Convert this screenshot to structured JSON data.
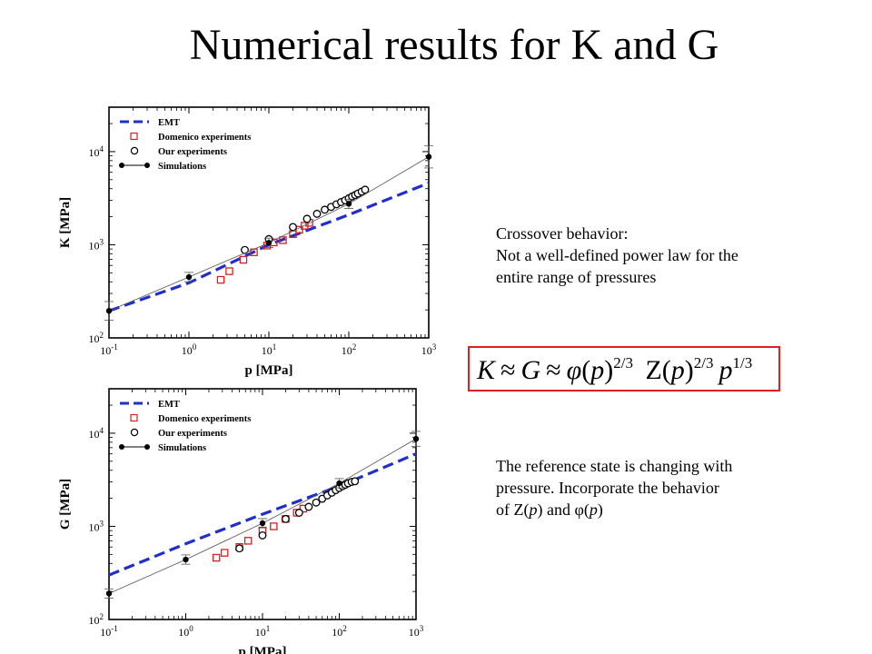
{
  "slide": {
    "title": "Numerical results for K and G"
  },
  "notes": {
    "crossover": {
      "line1": "Crossover behavior:",
      "line2": "Not a well-defined power law for the",
      "line3": "entire range of pressures"
    },
    "reference": {
      "line1": "The reference state is changing with",
      "line2": "pressure. Incorporate the behavior",
      "line3_prefix": "of Z(",
      "line3_p1": "p",
      "line3_mid": ") and ",
      "line3_phi": "φ",
      "line3_open": "(",
      "line3_p2": "p",
      "line3_close": ")"
    }
  },
  "formula": {
    "text": "K ≈ G ≈ φ(p)2/3 Z(p)2/3 p1/3",
    "border_color": "#e02020"
  },
  "colors": {
    "emt": "#1f2fcf",
    "domenico": "#d42020",
    "ours": "#000000",
    "simulations": "#000000"
  },
  "chart_data": [
    {
      "type": "scatter",
      "ylabel": "K [MPa]",
      "xlabel": "p [MPa]",
      "xscale": "log",
      "yscale": "log",
      "xlim": [
        0.1,
        1000
      ],
      "ylim": [
        100,
        30000
      ],
      "x_ticks": [
        "10-1",
        "100",
        "101",
        "102",
        "103"
      ],
      "y_ticks": [
        "102",
        "103",
        "104"
      ],
      "legend_position": "top-left",
      "legend": [
        "EMT",
        "Domenico experiments",
        "Our experiments",
        "Simulations"
      ],
      "series": [
        {
          "name": "EMT",
          "style": "dashed-line",
          "x": [
            0.1,
            1,
            10,
            100,
            1000
          ],
          "y": [
            195,
            390,
            1000,
            2100,
            4600
          ]
        },
        {
          "name": "Domenico experiments",
          "style": "open-square",
          "x": [
            2.5,
            3.2,
            4.8,
            6.5,
            9.5,
            11.5,
            15,
            20,
            24,
            28,
            32
          ],
          "y": [
            420,
            520,
            690,
            830,
            980,
            1060,
            1120,
            1300,
            1450,
            1600,
            1720
          ]
        },
        {
          "name": "Our experiments",
          "style": "open-circle",
          "x": [
            5,
            10,
            20,
            30,
            40,
            50,
            60,
            70,
            80,
            90,
            100,
            110,
            120,
            130,
            145,
            160
          ],
          "y": [
            880,
            1150,
            1550,
            1900,
            2150,
            2380,
            2550,
            2720,
            2870,
            3000,
            3150,
            3300,
            3420,
            3550,
            3720,
            3900
          ]
        },
        {
          "name": "Simulations",
          "style": "filled-circle-line",
          "x": [
            0.1,
            1,
            10,
            100,
            1000
          ],
          "y": [
            195,
            450,
            1050,
            2750,
            8800
          ],
          "y_err": [
            0.1,
            0.05,
            0.05,
            0.05,
            0.12
          ]
        }
      ]
    },
    {
      "type": "scatter",
      "ylabel": "G [MPa]",
      "xlabel": "p [MPa]",
      "xscale": "log",
      "yscale": "log",
      "xlim": [
        0.1,
        1000
      ],
      "ylim": [
        100,
        30000
      ],
      "x_ticks": [
        "10-1",
        "100",
        "101",
        "102",
        "103"
      ],
      "y_ticks": [
        "102",
        "103",
        "104"
      ],
      "legend_position": "top-left",
      "legend": [
        "EMT",
        "Domenico experiments",
        "Our experiments",
        "Simulations"
      ],
      "series": [
        {
          "name": "EMT",
          "style": "dashed-line",
          "x": [
            0.1,
            1,
            10,
            100,
            1000
          ],
          "y": [
            300,
            650,
            1350,
            2700,
            6000
          ]
        },
        {
          "name": "Domenico experiments",
          "style": "open-square",
          "x": [
            2.5,
            3.2,
            5,
            6.5,
            10,
            14,
            20,
            28,
            34
          ],
          "y": [
            460,
            520,
            600,
            700,
            900,
            1000,
            1200,
            1400,
            1550
          ]
        },
        {
          "name": "Our experiments",
          "style": "open-circle",
          "x": [
            5,
            10,
            20,
            30,
            40,
            50,
            60,
            70,
            80,
            90,
            100,
            110,
            120,
            130,
            145,
            160
          ],
          "y": [
            580,
            800,
            1200,
            1400,
            1620,
            1800,
            1980,
            2150,
            2300,
            2450,
            2580,
            2700,
            2800,
            2900,
            3000,
            3050
          ]
        },
        {
          "name": "Simulations",
          "style": "filled-circle-line",
          "x": [
            0.1,
            1,
            10,
            100,
            1000
          ],
          "y": [
            190,
            440,
            1080,
            2900,
            8700
          ],
          "y_err": [
            0.05,
            0.05,
            0.05,
            0.05,
            0.08
          ]
        }
      ]
    }
  ]
}
